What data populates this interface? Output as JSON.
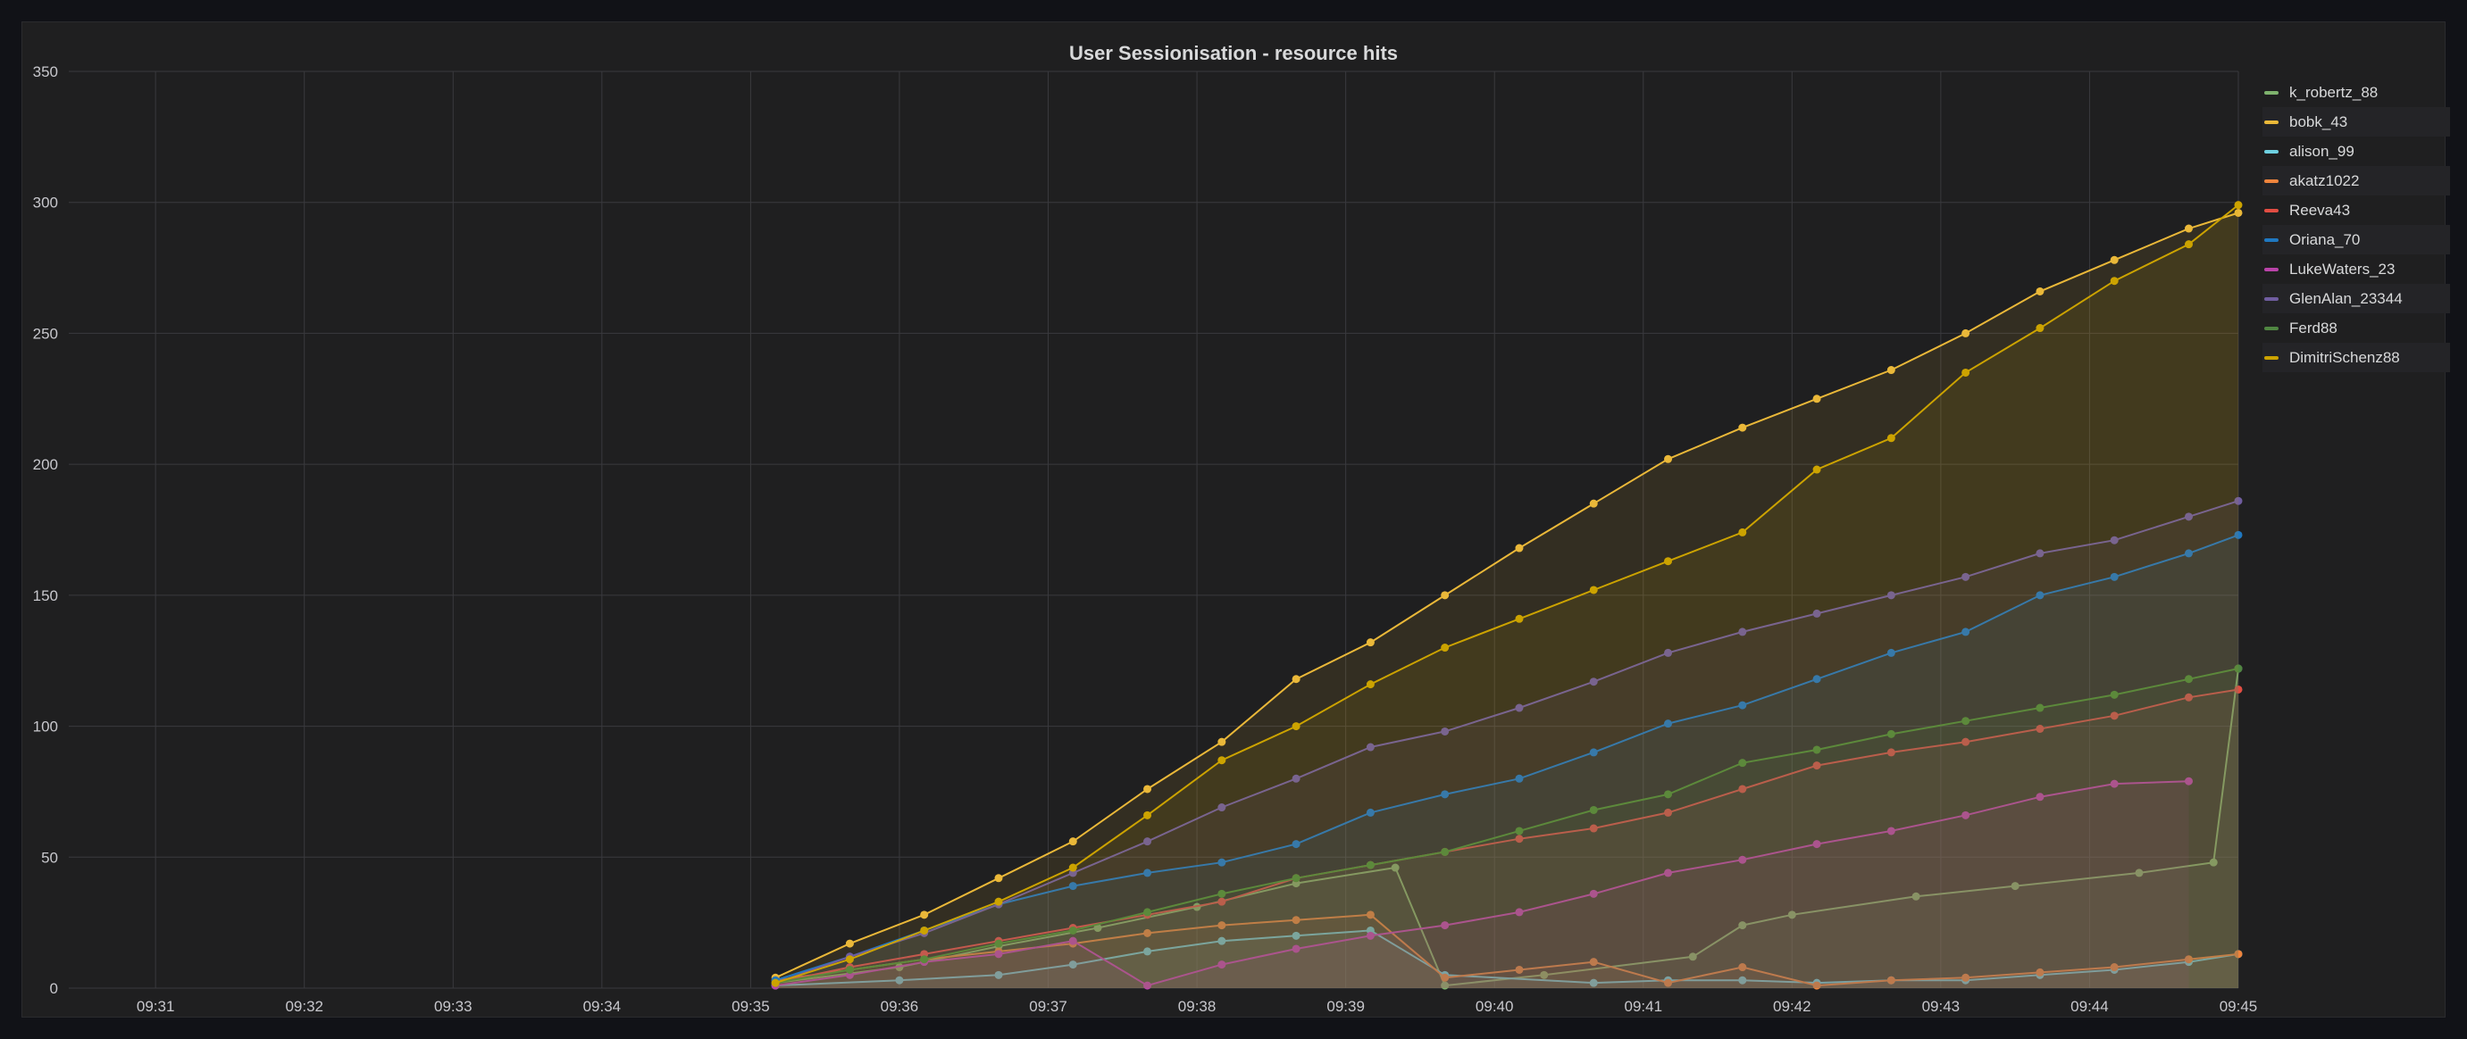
{
  "panel": {
    "title": "User Sessionisation - resource hits"
  },
  "chart_data": {
    "type": "line",
    "title": "User Sessionisation - resource hits",
    "xlabel": "",
    "ylabel": "",
    "x_ticks": [
      "09:31",
      "09:32",
      "09:33",
      "09:34",
      "09:35",
      "09:36",
      "09:37",
      "09:38",
      "09:39",
      "09:40",
      "09:41",
      "09:42",
      "09:43",
      "09:44",
      "09:45"
    ],
    "x_range": [
      "09:30:25",
      "09:45:00"
    ],
    "y_ticks": [
      0,
      50,
      100,
      150,
      200,
      250,
      300,
      350
    ],
    "ylim": [
      0,
      350
    ],
    "grid": true,
    "fill": true,
    "legend_position": "right",
    "series": [
      {
        "name": "k_robertz_88",
        "color": "#7eb26d",
        "points": [
          [
            "09:35:10",
            2
          ],
          [
            "09:36:00",
            8
          ],
          [
            "09:36:40",
            16
          ],
          [
            "09:37:20",
            23
          ],
          [
            "09:38:00",
            31
          ],
          [
            "09:38:40",
            40
          ],
          [
            "09:39:20",
            46
          ],
          [
            "09:39:40",
            1
          ],
          [
            "09:40:20",
            5
          ],
          [
            "09:41:20",
            12
          ],
          [
            "09:41:40",
            24
          ],
          [
            "09:42:00",
            28
          ],
          [
            "09:42:50",
            35
          ],
          [
            "09:43:30",
            39
          ],
          [
            "09:44:20",
            44
          ],
          [
            "09:44:50",
            48
          ],
          [
            "09:45:00",
            122
          ]
        ]
      },
      {
        "name": "bobk_43",
        "color": "#eab839",
        "points": [
          [
            "09:35:10",
            4
          ],
          [
            "09:35:40",
            17
          ],
          [
            "09:36:10",
            28
          ],
          [
            "09:36:40",
            42
          ],
          [
            "09:37:10",
            56
          ],
          [
            "09:37:40",
            76
          ],
          [
            "09:38:10",
            94
          ],
          [
            "09:38:40",
            118
          ],
          [
            "09:39:10",
            132
          ],
          [
            "09:39:40",
            150
          ],
          [
            "09:40:10",
            168
          ],
          [
            "09:40:40",
            185
          ],
          [
            "09:41:10",
            202
          ],
          [
            "09:41:40",
            214
          ],
          [
            "09:42:10",
            225
          ],
          [
            "09:42:40",
            236
          ],
          [
            "09:43:10",
            250
          ],
          [
            "09:43:40",
            266
          ],
          [
            "09:44:10",
            278
          ],
          [
            "09:44:40",
            290
          ],
          [
            "09:45:00",
            296
          ]
        ]
      },
      {
        "name": "alison_99",
        "color": "#6ed0e0",
        "points": [
          [
            "09:35:10",
            1
          ],
          [
            "09:36:00",
            3
          ],
          [
            "09:36:40",
            5
          ],
          [
            "09:37:10",
            9
          ],
          [
            "09:37:40",
            14
          ],
          [
            "09:38:10",
            18
          ],
          [
            "09:38:40",
            20
          ],
          [
            "09:39:10",
            22
          ],
          [
            "09:39:40",
            5
          ],
          [
            "09:40:40",
            2
          ],
          [
            "09:41:10",
            3
          ],
          [
            "09:41:40",
            3
          ],
          [
            "09:42:10",
            2
          ],
          [
            "09:42:40",
            3
          ],
          [
            "09:43:10",
            3
          ],
          [
            "09:43:40",
            5
          ],
          [
            "09:44:10",
            7
          ],
          [
            "09:44:40",
            10
          ],
          [
            "09:45:00",
            13
          ]
        ]
      },
      {
        "name": "akatz1022",
        "color": "#ef843c",
        "points": [
          [
            "09:35:10",
            3
          ],
          [
            "09:35:40",
            7
          ],
          [
            "09:36:10",
            11
          ],
          [
            "09:36:40",
            14
          ],
          [
            "09:37:10",
            17
          ],
          [
            "09:37:40",
            21
          ],
          [
            "09:38:10",
            24
          ],
          [
            "09:38:40",
            26
          ],
          [
            "09:39:10",
            28
          ],
          [
            "09:39:40",
            4
          ],
          [
            "09:40:10",
            7
          ],
          [
            "09:40:40",
            10
          ],
          [
            "09:41:10",
            2
          ],
          [
            "09:41:40",
            8
          ],
          [
            "09:42:10",
            1
          ],
          [
            "09:42:40",
            3
          ],
          [
            "09:43:10",
            4
          ],
          [
            "09:43:40",
            6
          ],
          [
            "09:44:10",
            8
          ],
          [
            "09:44:40",
            11
          ],
          [
            "09:45:00",
            13
          ]
        ]
      },
      {
        "name": "Reeva43",
        "color": "#e24d42",
        "points": [
          [
            "09:35:10",
            2
          ],
          [
            "09:35:40",
            8
          ],
          [
            "09:36:10",
            13
          ],
          [
            "09:36:40",
            18
          ],
          [
            "09:37:10",
            23
          ],
          [
            "09:37:40",
            28
          ],
          [
            "09:38:10",
            33
          ],
          [
            "09:38:40",
            42
          ],
          [
            "09:39:10",
            47
          ],
          [
            "09:39:40",
            52
          ],
          [
            "09:40:10",
            57
          ],
          [
            "09:40:40",
            61
          ],
          [
            "09:41:10",
            67
          ],
          [
            "09:41:40",
            76
          ],
          [
            "09:42:10",
            85
          ],
          [
            "09:42:40",
            90
          ],
          [
            "09:43:10",
            94
          ],
          [
            "09:43:40",
            99
          ],
          [
            "09:44:10",
            104
          ],
          [
            "09:44:40",
            111
          ],
          [
            "09:45:00",
            114
          ]
        ]
      },
      {
        "name": "Oriana_70",
        "color": "#1f78c1",
        "points": [
          [
            "09:35:10",
            3
          ],
          [
            "09:35:40",
            12
          ],
          [
            "09:36:10",
            22
          ],
          [
            "09:36:40",
            32
          ],
          [
            "09:37:10",
            39
          ],
          [
            "09:37:40",
            44
          ],
          [
            "09:38:10",
            48
          ],
          [
            "09:38:40",
            55
          ],
          [
            "09:39:10",
            67
          ],
          [
            "09:39:40",
            74
          ],
          [
            "09:40:10",
            80
          ],
          [
            "09:40:40",
            90
          ],
          [
            "09:41:10",
            101
          ],
          [
            "09:41:40",
            108
          ],
          [
            "09:42:10",
            118
          ],
          [
            "09:42:40",
            128
          ],
          [
            "09:43:10",
            136
          ],
          [
            "09:43:40",
            150
          ],
          [
            "09:44:10",
            157
          ],
          [
            "09:44:40",
            166
          ],
          [
            "09:45:00",
            173
          ]
        ]
      },
      {
        "name": "LukeWaters_23",
        "color": "#ba43a9",
        "points": [
          [
            "09:35:10",
            1
          ],
          [
            "09:35:40",
            5
          ],
          [
            "09:36:10",
            10
          ],
          [
            "09:36:40",
            13
          ],
          [
            "09:37:10",
            18
          ],
          [
            "09:37:40",
            1
          ],
          [
            "09:38:10",
            9
          ],
          [
            "09:38:40",
            15
          ],
          [
            "09:39:10",
            20
          ],
          [
            "09:39:40",
            24
          ],
          [
            "09:40:10",
            29
          ],
          [
            "09:40:40",
            36
          ],
          [
            "09:41:10",
            44
          ],
          [
            "09:41:40",
            49
          ],
          [
            "09:42:10",
            55
          ],
          [
            "09:42:40",
            60
          ],
          [
            "09:43:10",
            66
          ],
          [
            "09:43:40",
            73
          ],
          [
            "09:44:10",
            78
          ],
          [
            "09:44:40",
            79
          ]
        ]
      },
      {
        "name": "GlenAlan_23344",
        "color": "#705da0",
        "points": [
          [
            "09:35:10",
            2
          ],
          [
            "09:35:40",
            12
          ],
          [
            "09:36:10",
            21
          ],
          [
            "09:36:40",
            32
          ],
          [
            "09:37:10",
            44
          ],
          [
            "09:37:40",
            56
          ],
          [
            "09:38:10",
            69
          ],
          [
            "09:38:40",
            80
          ],
          [
            "09:39:10",
            92
          ],
          [
            "09:39:40",
            98
          ],
          [
            "09:40:10",
            107
          ],
          [
            "09:40:40",
            117
          ],
          [
            "09:41:10",
            128
          ],
          [
            "09:41:40",
            136
          ],
          [
            "09:42:10",
            143
          ],
          [
            "09:42:40",
            150
          ],
          [
            "09:43:10",
            157
          ],
          [
            "09:43:40",
            166
          ],
          [
            "09:44:10",
            171
          ],
          [
            "09:44:40",
            180
          ],
          [
            "09:45:00",
            186
          ]
        ]
      },
      {
        "name": "Ferd88",
        "color": "#508642",
        "points": [
          [
            "09:35:10",
            2
          ],
          [
            "09:35:40",
            7
          ],
          [
            "09:36:10",
            11
          ],
          [
            "09:36:40",
            17
          ],
          [
            "09:37:10",
            22
          ],
          [
            "09:37:40",
            29
          ],
          [
            "09:38:10",
            36
          ],
          [
            "09:38:40",
            42
          ],
          [
            "09:39:10",
            47
          ],
          [
            "09:39:40",
            52
          ],
          [
            "09:40:10",
            60
          ],
          [
            "09:40:40",
            68
          ],
          [
            "09:41:10",
            74
          ],
          [
            "09:41:40",
            86
          ],
          [
            "09:42:10",
            91
          ],
          [
            "09:42:40",
            97
          ],
          [
            "09:43:10",
            102
          ],
          [
            "09:43:40",
            107
          ],
          [
            "09:44:10",
            112
          ],
          [
            "09:44:40",
            118
          ],
          [
            "09:45:00",
            122
          ]
        ]
      },
      {
        "name": "DimitriSchenz88",
        "color": "#cca300",
        "points": [
          [
            "09:35:10",
            2
          ],
          [
            "09:35:40",
            11
          ],
          [
            "09:36:10",
            22
          ],
          [
            "09:36:40",
            33
          ],
          [
            "09:37:10",
            46
          ],
          [
            "09:37:40",
            66
          ],
          [
            "09:38:10",
            87
          ],
          [
            "09:38:40",
            100
          ],
          [
            "09:39:10",
            116
          ],
          [
            "09:39:40",
            130
          ],
          [
            "09:40:10",
            141
          ],
          [
            "09:40:40",
            152
          ],
          [
            "09:41:10",
            163
          ],
          [
            "09:41:40",
            174
          ],
          [
            "09:42:10",
            198
          ],
          [
            "09:42:40",
            210
          ],
          [
            "09:43:10",
            235
          ],
          [
            "09:43:40",
            252
          ],
          [
            "09:44:10",
            270
          ],
          [
            "09:44:40",
            284
          ],
          [
            "09:45:00",
            299
          ]
        ]
      }
    ]
  }
}
